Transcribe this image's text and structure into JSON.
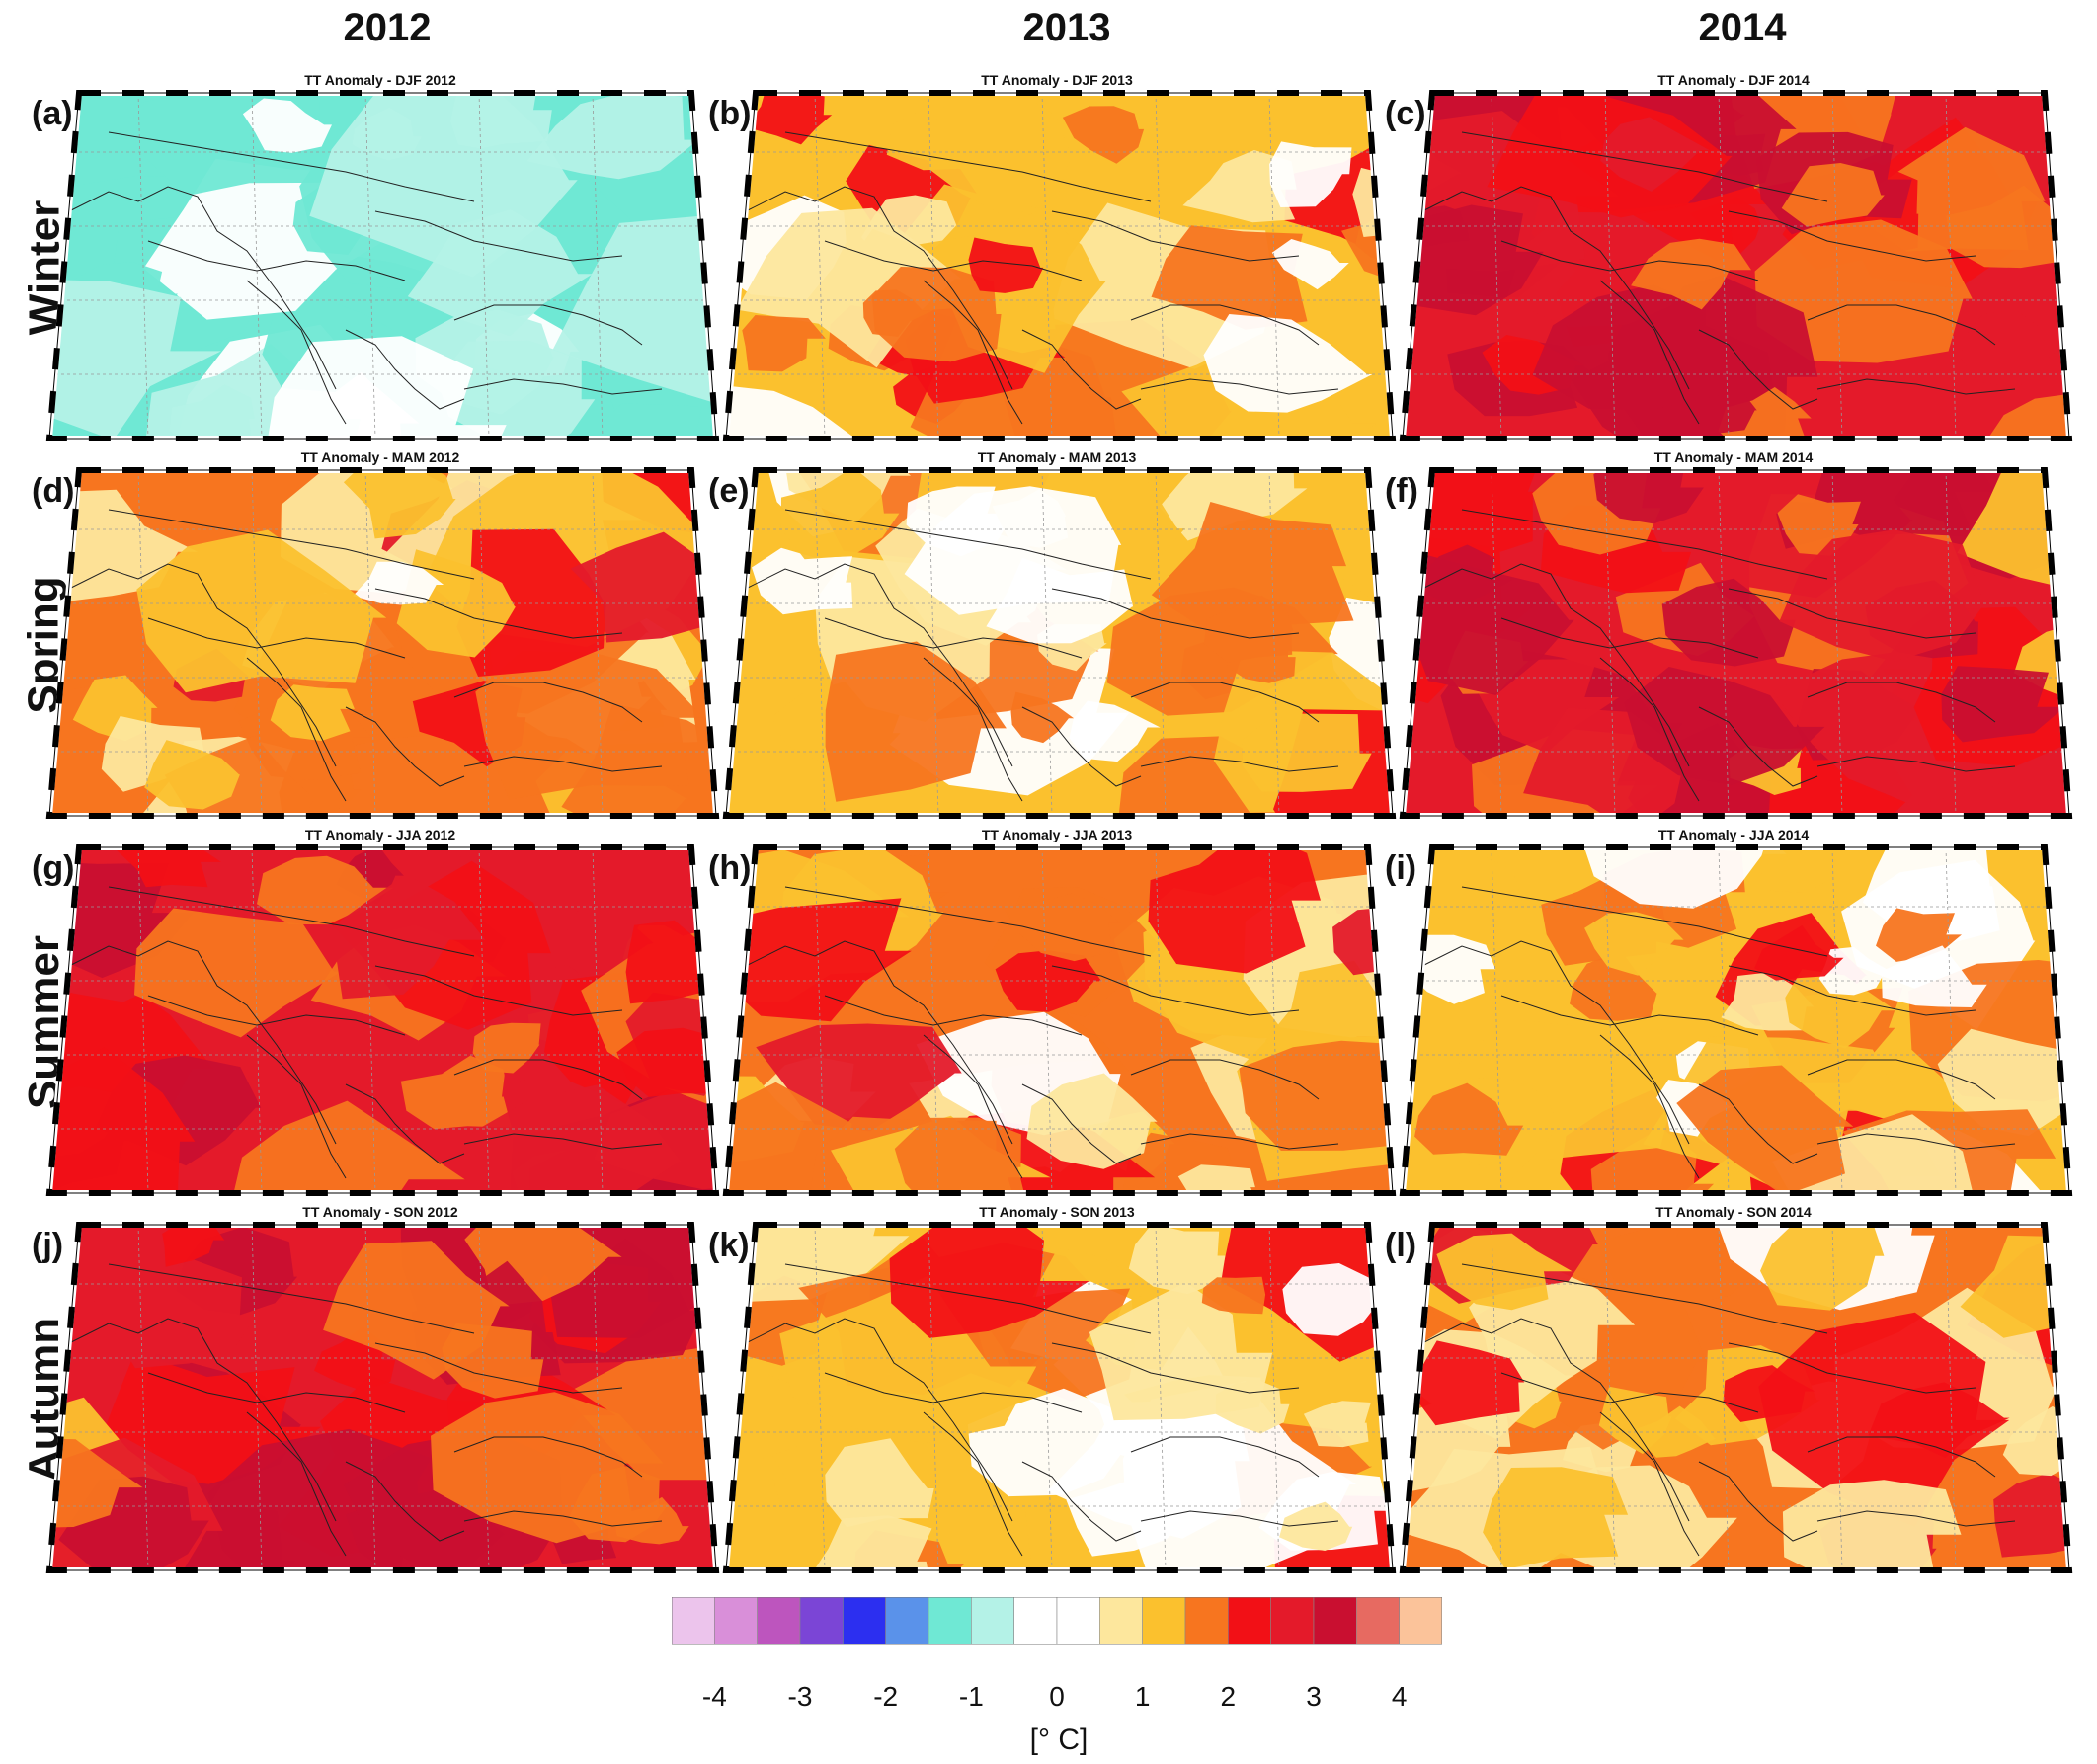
{
  "columns": [
    "2012",
    "2013",
    "2014"
  ],
  "rows": [
    "Winter",
    "Spring",
    "Summer",
    "Autumn"
  ],
  "panels": [
    {
      "label": "(a)",
      "title": "TT Anomaly - DJF 2012",
      "season": "DJF",
      "year": "2012",
      "dominant_anomaly_c": -1
    },
    {
      "label": "(b)",
      "title": "TT Anomaly - DJF 2013",
      "season": "DJF",
      "year": "2013",
      "dominant_anomaly_c": 1
    },
    {
      "label": "(c)",
      "title": "TT Anomaly - DJF 2014",
      "season": "DJF",
      "year": "2014",
      "dominant_anomaly_c": 2.5
    },
    {
      "label": "(d)",
      "title": "TT Anomaly - MAM 2012",
      "season": "MAM",
      "year": "2012",
      "dominant_anomaly_c": 1.5
    },
    {
      "label": "(e)",
      "title": "TT Anomaly - MAM 2013",
      "season": "MAM",
      "year": "2013",
      "dominant_anomaly_c": 1
    },
    {
      "label": "(f)",
      "title": "TT Anomaly - MAM 2014",
      "season": "MAM",
      "year": "2014",
      "dominant_anomaly_c": 2.5
    },
    {
      "label": "(g)",
      "title": "TT Anomaly - JJA 2012",
      "season": "JJA",
      "year": "2012",
      "dominant_anomaly_c": 2.5
    },
    {
      "label": "(h)",
      "title": "TT Anomaly - JJA 2013",
      "season": "JJA",
      "year": "2013",
      "dominant_anomaly_c": 1.5
    },
    {
      "label": "(i)",
      "title": "TT Anomaly - JJA 2014",
      "season": "JJA",
      "year": "2014",
      "dominant_anomaly_c": 1
    },
    {
      "label": "(j)",
      "title": "TT Anomaly - SON 2012",
      "season": "SON",
      "year": "2012",
      "dominant_anomaly_c": 2.5
    },
    {
      "label": "(k)",
      "title": "TT Anomaly - SON 2013",
      "season": "SON",
      "year": "2013",
      "dominant_anomaly_c": 1
    },
    {
      "label": "(l)",
      "title": "TT Anomaly - SON 2014",
      "season": "SON",
      "year": "2014",
      "dominant_anomaly_c": 1.5
    }
  ],
  "colorbar": {
    "colors": [
      "#ecc4ec",
      "#d98fd9",
      "#bd55be",
      "#7b45d6",
      "#2c2ff0",
      "#5a92ea",
      "#6fe8d4",
      "#b4f2e7",
      "#ffffff",
      "#ffffff",
      "#fde79d",
      "#fbc12e",
      "#f7751f",
      "#f21016",
      "#e41a2a",
      "#c90f30",
      "#e76a61",
      "#fbc39a"
    ],
    "ticks": [
      "-4",
      "-3",
      "-2",
      "-1",
      "0",
      "1",
      "2",
      "3",
      "4"
    ],
    "tick_values": [
      -4,
      -3,
      -2,
      -1,
      0,
      1,
      2,
      3,
      4
    ],
    "unit": "[° C]"
  }
}
